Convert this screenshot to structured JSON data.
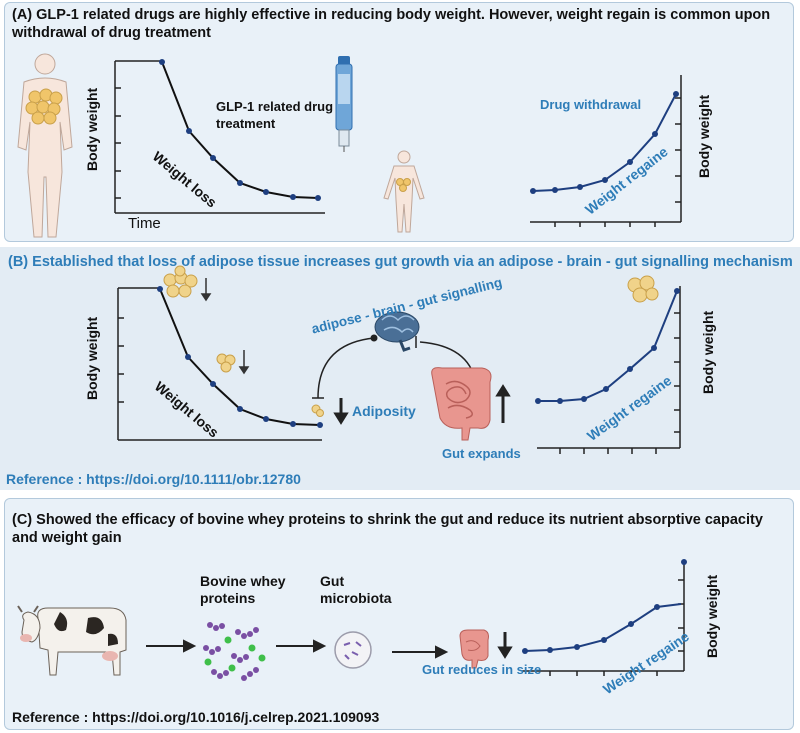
{
  "panel_a": {
    "heading": "(A) GLP-1 related drugs are highly effective in reducing body weight. However, weight regain is common upon withdrawal of drug treatment",
    "ylabel_left": "Body weight",
    "xlabel": "Time",
    "weight_loss": "Weight loss",
    "drug_treatment": "GLP-1 related drug treatment",
    "drug_withdrawal": "Drug withdrawal",
    "weight_regain": "Weight regaine",
    "ylabel_right": "Body weight"
  },
  "panel_b": {
    "heading": "(B) Established that loss of adipose tissue increases gut growth via an adipose - brain - gut signalling mechanism",
    "ylabel_left": "Body weight",
    "weight_loss": "Weight loss",
    "signalling": "adipose - brain - gut signalling",
    "adiposity": "Adiposity",
    "gut_expands": "Gut expands",
    "weight_regain": "Weight regaine",
    "ylabel_right": "Body weight",
    "reference": "Reference : https://doi.org/10.1111/obr.12780"
  },
  "panel_c": {
    "heading": "(C) Showed the efficacy of bovine whey proteins to shrink the gut and reduce its nutrient absorptive capacity and weight gain",
    "whey": "Bovine whey proteins",
    "microbiota": "Gut microbiota",
    "gut_reduces": "Gut reduces in size",
    "weight_regain": "Weight regaine",
    "ylabel_right": "Body weight",
    "reference": "Reference : https://doi.org/10.1016/j.celrep.2021.109093"
  },
  "colors": {
    "accent_blue": "#2e7db8",
    "point_navy": "#1e3f80",
    "fat_yellow": "#f0d38a",
    "gut_pink": "#e8968f"
  }
}
